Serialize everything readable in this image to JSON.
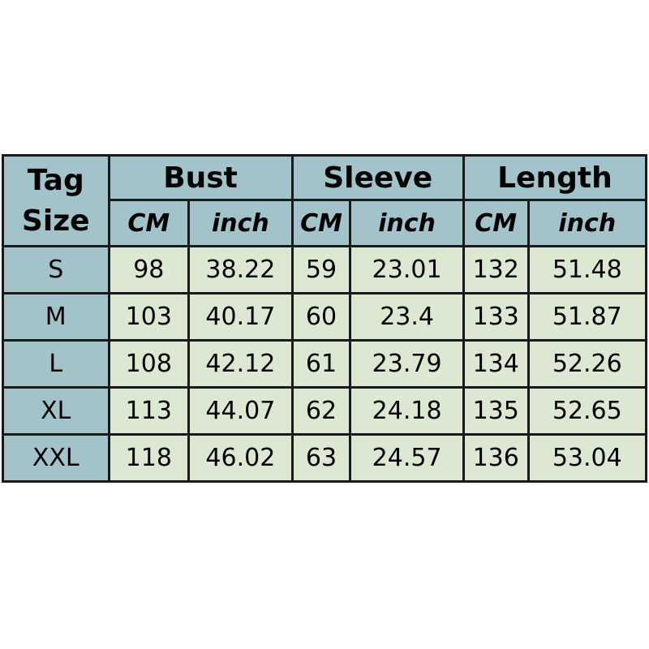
{
  "header": {
    "tag_line1": "Tag",
    "tag_line2": "Size",
    "groups": [
      "Bust",
      "Sleeve",
      "Length"
    ],
    "units": [
      "CM",
      "inch",
      "CM",
      "inch",
      "CM",
      "inch"
    ]
  },
  "colors": {
    "header_bg": "#a3c3cb",
    "cell_bg": "#dde8d2",
    "border": "#1a1a1a"
  },
  "rows": [
    [
      "S",
      "98",
      "38.22",
      "59",
      "23.01",
      "132",
      "51.48"
    ],
    [
      "M",
      "103",
      "40.17",
      "60",
      "23.4",
      "133",
      "51.87"
    ],
    [
      "L",
      "108",
      "42.12",
      "61",
      "23.79",
      "134",
      "52.26"
    ],
    [
      "XL",
      "113",
      "44.07",
      "62",
      "24.18",
      "135",
      "52.65"
    ],
    [
      "XXL",
      "118",
      "46.02",
      "63",
      "24.57",
      "136",
      "53.04"
    ]
  ]
}
